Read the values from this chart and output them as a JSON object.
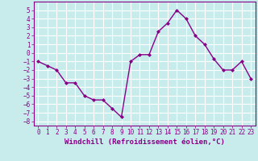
{
  "x": [
    0,
    1,
    2,
    3,
    4,
    5,
    6,
    7,
    8,
    9,
    10,
    11,
    12,
    13,
    14,
    15,
    16,
    17,
    18,
    19,
    20,
    21,
    22,
    23
  ],
  "y": [
    -1,
    -1.5,
    -2,
    -3.5,
    -3.5,
    -5,
    -5.5,
    -5.5,
    -6.5,
    -7.5,
    -1,
    -0.2,
    -0.2,
    2.5,
    3.5,
    5,
    4,
    2,
    1,
    -0.7,
    -2,
    -2,
    -1,
    -3
  ],
  "line_color": "#880088",
  "marker": "D",
  "marker_size": 2.0,
  "bg_color": "#c8ecec",
  "grid_color": "#ffffff",
  "xlabel": "Windchill (Refroidissement éolien,°C)",
  "xlim": [
    -0.5,
    23.5
  ],
  "ylim": [
    -8.5,
    6.0
  ],
  "yticks": [
    -8,
    -7,
    -6,
    -5,
    -4,
    -3,
    -2,
    -1,
    0,
    1,
    2,
    3,
    4,
    5
  ],
  "xticks": [
    0,
    1,
    2,
    3,
    4,
    5,
    6,
    7,
    8,
    9,
    10,
    11,
    12,
    13,
    14,
    15,
    16,
    17,
    18,
    19,
    20,
    21,
    22,
    23
  ],
  "xlabel_fontsize": 6.5,
  "tick_fontsize": 5.5,
  "line_width": 1.0
}
